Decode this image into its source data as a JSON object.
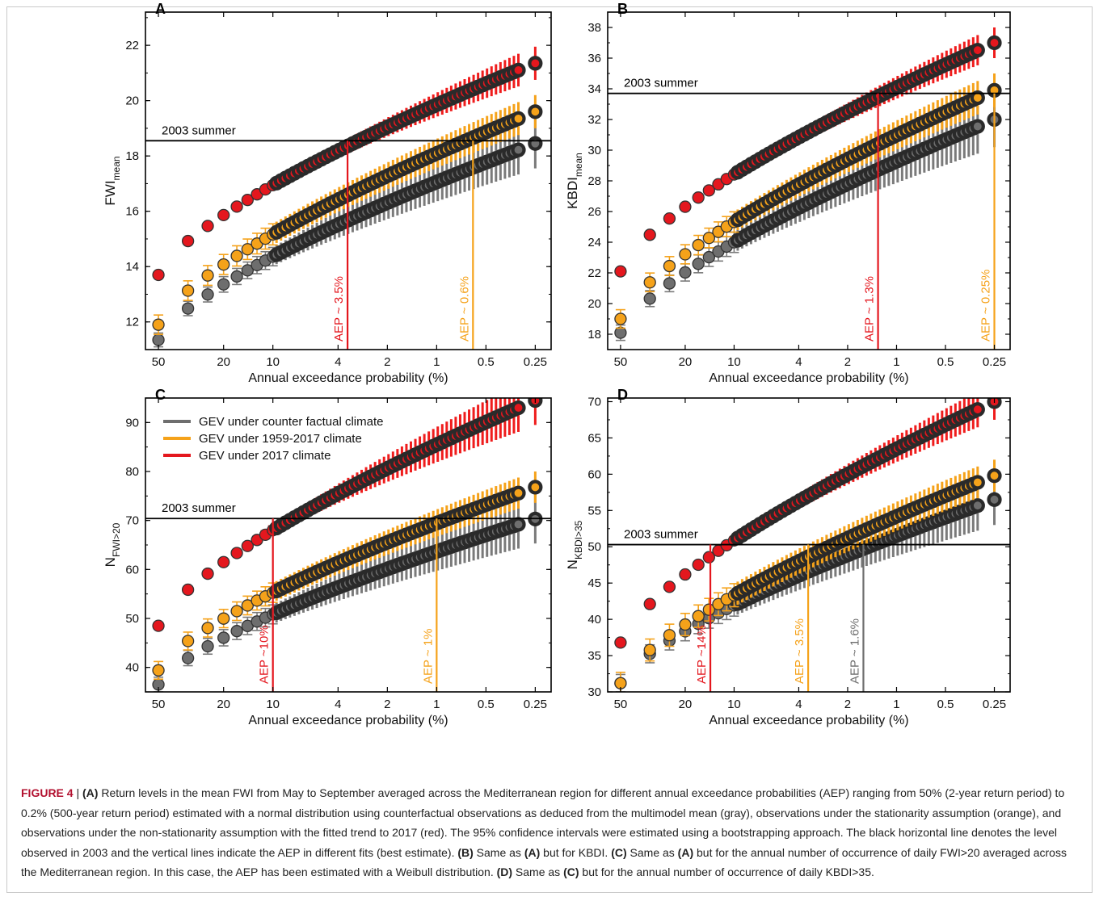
{
  "caption": {
    "label": "FIGURE 4",
    "separator": " | ",
    "segments": [
      {
        "text": "(A)",
        "bold": true
      },
      {
        "text": " Return levels in the mean FWI from May to September averaged across the Mediterranean region for different annual exceedance probabilities (AEP) ranging from 50% (2-year return period) to 0.2% (500-year return period) estimated with a normal distribution using counterfactual observations as deduced from the multimodel mean (gray), observations under the stationarity assumption (orange), and observations under the non-stationarity assumption with the fitted trend to 2017 (red). The 95% confidence intervals were estimated using a bootstrapping approach. The black horizontal line denotes the level observed in 2003 and the vertical lines indicate the AEP in different fits (best estimate). ",
        "bold": false
      },
      {
        "text": "(B)",
        "bold": true
      },
      {
        "text": " Same as ",
        "bold": false
      },
      {
        "text": "(A)",
        "bold": true
      },
      {
        "text": " but for KBDI. ",
        "bold": false
      },
      {
        "text": "(C)",
        "bold": true
      },
      {
        "text": " Same as ",
        "bold": false
      },
      {
        "text": "(A)",
        "bold": true
      },
      {
        "text": " but for the annual number of occurrence of daily FWI>20 averaged across the Mediterranean region. In this case, the AEP has been estimated with a Weibull distribution. ",
        "bold": false
      },
      {
        "text": "(D)",
        "bold": true
      },
      {
        "text": " Same as ",
        "bold": false
      },
      {
        "text": "(C)",
        "bold": true
      },
      {
        "text": " but for the annual number of occurrence of daily KBDI>35.",
        "bold": false
      }
    ]
  },
  "colors": {
    "gray": "#6e6e6e",
    "gray_band": "#7a7a7a",
    "orange": "#f5a21a",
    "orange_band": "#f5a21a",
    "red": "#e4171e",
    "red_band": "#ef1c1c",
    "black_core": "#2a2a2a",
    "axis": "#000000"
  },
  "chart_data": [
    {
      "panel": "A",
      "type": "scatter",
      "ylabel_main": "FWI",
      "ylabel_sub": "mean",
      "xlabel": "Annual exceedance probability (%)",
      "x_scale": "log-reversed",
      "xlim": [
        60,
        0.2
      ],
      "ylim": [
        11,
        23.2
      ],
      "xticks": [
        50,
        20,
        10,
        4,
        2,
        1,
        0.5,
        0.25
      ],
      "xtick_labels": [
        "50",
        "20",
        "10",
        "4",
        "2",
        "1",
        "0.5",
        "0.25"
      ],
      "yticks": [
        12,
        14,
        16,
        18,
        20,
        22
      ],
      "ytick_labels": [
        "12",
        "14",
        "16",
        "18",
        "20",
        "22"
      ],
      "ref_label": "2003 summer",
      "ref_value": 18.55,
      "series": [
        {
          "color_key": "gray",
          "start": 11.35,
          "end": 18.45,
          "ci_start": 0.25,
          "ci_end": 0.9
        },
        {
          "color_key": "orange",
          "start": 11.9,
          "end": 19.6,
          "ci_start": 0.35,
          "ci_end": 0.6
        },
        {
          "color_key": "red",
          "start": 13.7,
          "end": 21.35,
          "ci_start": 0.05,
          "ci_end": 0.6
        }
      ],
      "aep_lines": [
        {
          "color_key": "red",
          "x": 3.5,
          "label": "AEP ~ 3.5%"
        },
        {
          "color_key": "orange",
          "x": 0.6,
          "label": "AEP ~ 0.6%"
        }
      ],
      "legend": []
    },
    {
      "panel": "B",
      "type": "scatter",
      "ylabel_main": "KBDI",
      "ylabel_sub": "mean",
      "xlabel": "Annual exceedance probability (%)",
      "x_scale": "log-reversed",
      "xlim": [
        60,
        0.2
      ],
      "ylim": [
        17,
        39
      ],
      "xticks": [
        50,
        20,
        10,
        4,
        2,
        1,
        0.5,
        0.25
      ],
      "xtick_labels": [
        "50",
        "20",
        "10",
        "4",
        "2",
        "1",
        "0.5",
        "0.25"
      ],
      "yticks": [
        18,
        20,
        22,
        24,
        26,
        28,
        30,
        32,
        34,
        36,
        38
      ],
      "ytick_labels": [
        "18",
        "20",
        "22",
        "24",
        "26",
        "28",
        "30",
        "32",
        "34",
        "36",
        "38"
      ],
      "ref_label": "2003 summer",
      "ref_value": 33.7,
      "series": [
        {
          "color_key": "gray",
          "start": 18.1,
          "end": 32.0,
          "ci_start": 0.5,
          "ci_end": 1.8
        },
        {
          "color_key": "orange",
          "start": 19.0,
          "end": 33.9,
          "ci_start": 0.6,
          "ci_end": 1.1
        },
        {
          "color_key": "red",
          "start": 22.1,
          "end": 37.0,
          "ci_start": 0.1,
          "ci_end": 1.0
        }
      ],
      "aep_lines": [
        {
          "color_key": "red",
          "x": 1.3,
          "label": "AEP ~ 1.3%"
        },
        {
          "color_key": "orange",
          "x": 0.25,
          "label": "AEP ~ 0.25%"
        }
      ],
      "legend": []
    },
    {
      "panel": "C",
      "type": "scatter",
      "ylabel_main": "N",
      "ylabel_sub": "FWI>20",
      "xlabel": "Annual exceedance probability (%)",
      "x_scale": "log-reversed",
      "xlim": [
        60,
        0.2
      ],
      "ylim": [
        35,
        95
      ],
      "xticks": [
        50,
        20,
        10,
        4,
        2,
        1,
        0.5,
        0.25
      ],
      "xtick_labels": [
        "50",
        "20",
        "10",
        "4",
        "2",
        "1",
        "0.5",
        "0.25"
      ],
      "yticks": [
        40,
        50,
        60,
        70,
        80,
        90
      ],
      "ytick_labels": [
        "40",
        "50",
        "60",
        "70",
        "80",
        "90"
      ],
      "ref_label": "2003 summer",
      "ref_value": 70.4,
      "series": [
        {
          "color_key": "gray",
          "start": 36.5,
          "end": 70.3,
          "ci_start": 1.5,
          "ci_end": 5.0
        },
        {
          "color_key": "orange",
          "start": 39.4,
          "end": 76.8,
          "ci_start": 1.8,
          "ci_end": 3.2
        },
        {
          "color_key": "red",
          "start": 48.5,
          "end": 94.5,
          "ci_start": 0.3,
          "ci_end": 5.0
        }
      ],
      "aep_lines": [
        {
          "color_key": "red",
          "x": 10,
          "label": "AEP ~10%"
        },
        {
          "color_key": "orange",
          "x": 1,
          "label": "AEP ~ 1%"
        }
      ],
      "legend": [
        {
          "color_key": "gray",
          "label": "GEV under counter factual climate"
        },
        {
          "color_key": "orange",
          "label": "GEV under 1959-2017 climate"
        },
        {
          "color_key": "red",
          "label": "GEV under 2017 climate"
        }
      ]
    },
    {
      "panel": "D",
      "type": "scatter",
      "ylabel_main": "N",
      "ylabel_sub": "KBDI>35",
      "xlabel": "Annual exceedance probability (%)",
      "x_scale": "log-reversed",
      "xlim": [
        60,
        0.2
      ],
      "ylim": [
        30,
        70.5
      ],
      "xticks": [
        50,
        20,
        10,
        4,
        2,
        1,
        0.5,
        0.25
      ],
      "xtick_labels": [
        "50",
        "20",
        "10",
        "4",
        "2",
        "1",
        "0.5",
        "0.25"
      ],
      "yticks": [
        30,
        35,
        40,
        45,
        50,
        55,
        60,
        65,
        70
      ],
      "ytick_labels": [
        "30",
        "35",
        "40",
        "45",
        "50",
        "55",
        "60",
        "65",
        "70"
      ],
      "ref_label": "2003 summer",
      "ref_value": 50.3,
      "series": [
        {
          "color_key": "gray",
          "start": 31.2,
          "end": 56.5,
          "ci_start": 1.2,
          "ci_end": 3.5
        },
        {
          "color_key": "orange",
          "start": 31.2,
          "end": 59.8,
          "ci_start": 1.5,
          "ci_end": 2.2
        },
        {
          "color_key": "red",
          "start": 36.8,
          "end": 70.0,
          "ci_start": 0.2,
          "ci_end": 2.5
        }
      ],
      "aep_lines": [
        {
          "color_key": "red",
          "x": 14,
          "label": "AEP ~14%"
        },
        {
          "color_key": "orange",
          "x": 3.5,
          "label": "AEP ~ 3.5%"
        },
        {
          "color_key": "gray",
          "x": 1.6,
          "label": "AEP ~ 1.6%"
        }
      ],
      "legend": []
    }
  ]
}
